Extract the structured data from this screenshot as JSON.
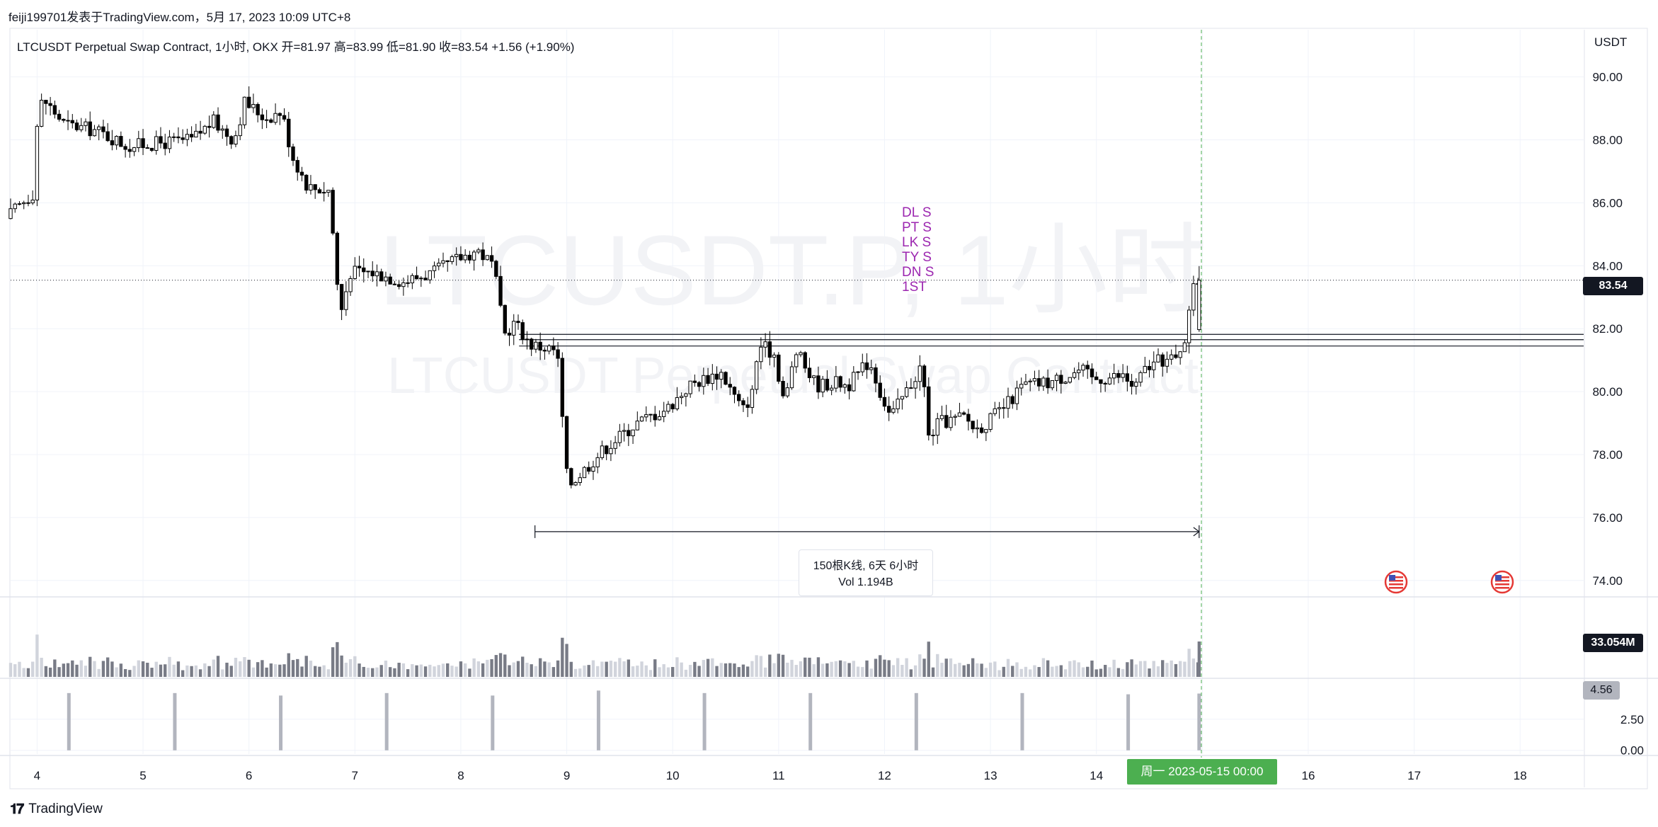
{
  "header": {
    "publish_info": "feiji199701发表于TradingView.com，5月 17, 2023 10:09 UTC+8"
  },
  "symbol_line": "LTCUSDT Perpetual Swap Contract, 1小时, OKX  开=81.97  高=83.99  低=81.90  收=83.54  +1.56 (+1.90%)",
  "currency": "USDT",
  "watermark": {
    "line1": "LTCUSDT.P, 1小时",
    "line2": "LTCUSDT Perpetual Swap Contract"
  },
  "signals": [
    "DL S",
    "PT S",
    "LK S",
    "TY S",
    "DN S",
    "1ST"
  ],
  "measure": {
    "line1": "150根K线, 6天 6小时",
    "line2": "Vol 1.194B"
  },
  "crosshair_time": "周一 2023-05-15   00:00",
  "last_price": "83.54",
  "volume_last": "33.054M",
  "indicator_last": "4.56",
  "footer": {
    "brand": "TradingView"
  },
  "colors": {
    "up": "#ffffff",
    "down": "#000000",
    "crosshair": "#4caf50",
    "signal": "#9c27b0",
    "volume_up": "#d1d4dc",
    "volume_down": "#787b86"
  },
  "chart_data": [
    {
      "type": "candlestick",
      "title": "LTCUSDT Perpetual Swap Contract, 1小时, OKX",
      "ylabel": "USDT",
      "ylim": [
        73.5,
        91.5
      ],
      "y_ticks": [
        "90.00",
        "88.00",
        "86.00",
        "84.00",
        "82.00",
        "80.00",
        "78.00",
        "76.00",
        "74.00"
      ],
      "x_ticks": [
        "4",
        "5",
        "6",
        "7",
        "8",
        "9",
        "10",
        "11",
        "12",
        "13",
        "14",
        "15",
        "16",
        "17",
        "18"
      ],
      "x_range_days": [
        3.75,
        18.6
      ],
      "horizontal_lines": [
        81.82,
        81.65,
        81.45
      ],
      "close_path": [
        [
          3.75,
          85.5
        ],
        [
          3.9,
          86.0
        ],
        [
          4.0,
          86.3
        ],
        [
          4.05,
          88.9
        ],
        [
          4.1,
          89.3
        ],
        [
          4.3,
          88.5
        ],
        [
          4.6,
          88.3
        ],
        [
          4.9,
          87.8
        ],
        [
          5.2,
          87.9
        ],
        [
          5.5,
          88.0
        ],
        [
          5.7,
          88.6
        ],
        [
          5.9,
          88.0
        ],
        [
          6.0,
          89.2
        ],
        [
          6.2,
          88.7
        ],
        [
          6.35,
          88.9
        ],
        [
          6.45,
          87.5
        ],
        [
          6.6,
          86.5
        ],
        [
          6.8,
          86.4
        ],
        [
          6.9,
          82.4
        ],
        [
          7.0,
          83.8
        ],
        [
          7.2,
          83.8
        ],
        [
          7.5,
          83.5
        ],
        [
          7.8,
          83.8
        ],
        [
          8.0,
          84.2
        ],
        [
          8.2,
          84.5
        ],
        [
          8.35,
          84.0
        ],
        [
          8.45,
          81.8
        ],
        [
          8.55,
          82.2
        ],
        [
          8.7,
          81.5
        ],
        [
          8.95,
          81.3
        ],
        [
          9.05,
          77.0
        ],
        [
          9.2,
          77.5
        ],
        [
          9.4,
          78.2
        ],
        [
          9.7,
          79.0
        ],
        [
          10.0,
          79.5
        ],
        [
          10.2,
          80.2
        ],
        [
          10.4,
          80.5
        ],
        [
          10.5,
          80.6
        ],
        [
          10.7,
          79.4
        ],
        [
          10.8,
          80.0
        ],
        [
          10.85,
          81.5
        ],
        [
          11.0,
          81.2
        ],
        [
          11.1,
          79.6
        ],
        [
          11.2,
          81.3
        ],
        [
          11.4,
          80.2
        ],
        [
          11.6,
          80.3
        ],
        [
          11.7,
          80.2
        ],
        [
          11.9,
          81.0
        ],
        [
          12.0,
          80.0
        ],
        [
          12.1,
          79.2
        ],
        [
          12.3,
          80.3
        ],
        [
          12.4,
          80.9
        ],
        [
          12.45,
          78.5
        ],
        [
          12.55,
          79.0
        ],
        [
          12.8,
          79.2
        ],
        [
          12.9,
          78.8
        ],
        [
          13.0,
          79.0
        ],
        [
          13.2,
          79.6
        ],
        [
          13.35,
          80.2
        ],
        [
          13.6,
          80.3
        ],
        [
          13.9,
          80.7
        ],
        [
          14.0,
          80.4
        ],
        [
          14.3,
          80.5
        ],
        [
          14.4,
          80.1
        ],
        [
          14.5,
          80.7
        ],
        [
          14.65,
          81.0
        ],
        [
          14.8,
          81.0
        ],
        [
          14.85,
          81.6
        ],
        [
          14.9,
          81.9
        ],
        [
          14.95,
          83.54
        ]
      ]
    },
    {
      "type": "bar",
      "title": "Volume",
      "last_value": "33.054M"
    },
    {
      "type": "bar",
      "title": "Indicator",
      "y_ticks": [
        "2.50",
        "0.00"
      ],
      "ylim": [
        -0.3,
        5.5
      ],
      "x": [
        4.3,
        5.3,
        6.3,
        7.3,
        8.3,
        9.3,
        10.3,
        11.3,
        12.3,
        13.3,
        14.3,
        14.97
      ],
      "values": [
        4.6,
        4.6,
        4.4,
        4.6,
        4.4,
        4.8,
        4.6,
        4.6,
        4.6,
        4.6,
        4.5,
        4.56
      ]
    }
  ]
}
